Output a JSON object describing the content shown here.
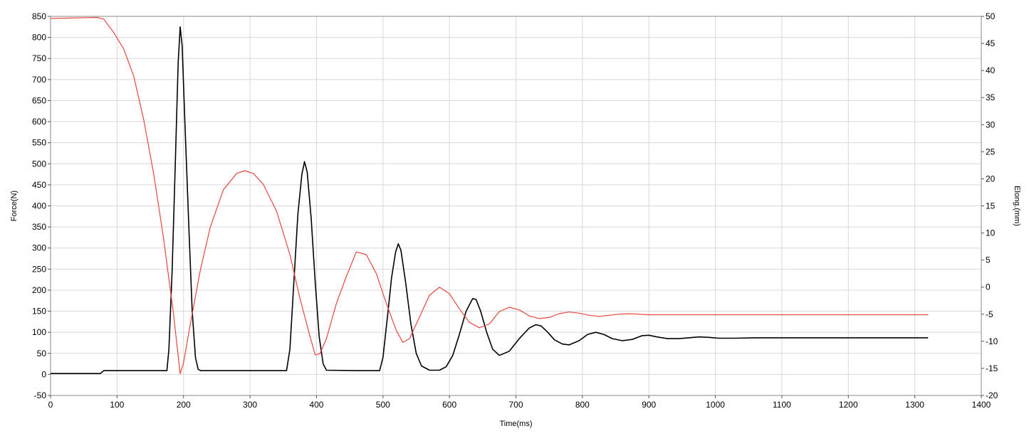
{
  "chart_data": {
    "type": "line",
    "xlabel": "Time(ms)",
    "ylabel_left": "Force(N)",
    "ylabel_right": "Elong.(mm)",
    "xlim": [
      0,
      1400
    ],
    "ylim_left": [
      -50,
      850
    ],
    "ylim_right": [
      -20,
      50
    ],
    "x_ticks": [
      "0",
      "100",
      "200",
      "300",
      "400",
      "500",
      "600",
      "700",
      "800",
      "900",
      "1000",
      "1100",
      "1200",
      "1300",
      "1400"
    ],
    "y_left_ticks": [
      "-50",
      "0",
      "50",
      "100",
      "150",
      "200",
      "250",
      "300",
      "350",
      "400",
      "450",
      "500",
      "550",
      "600",
      "650",
      "700",
      "750",
      "800",
      "850"
    ],
    "y_right_ticks": [
      "-20",
      "-15",
      "-10",
      "-5",
      "0",
      "5",
      "10",
      "15",
      "20",
      "25",
      "30",
      "35",
      "40",
      "45",
      "50"
    ],
    "grid": true,
    "colors": {
      "force": "#000000",
      "elongation": "#e8453c",
      "grid": "#d8d8d8",
      "axis": "#555555"
    },
    "series": [
      {
        "axis": "left",
        "points": [
          [
            0,
            2
          ],
          [
            75,
            2
          ],
          [
            80,
            9
          ],
          [
            120,
            9
          ],
          [
            175,
            9
          ],
          [
            178,
            60
          ],
          [
            183,
            250
          ],
          [
            188,
            520
          ],
          [
            192,
            740
          ],
          [
            195,
            825
          ],
          [
            198,
            780
          ],
          [
            202,
            600
          ],
          [
            208,
            350
          ],
          [
            213,
            150
          ],
          [
            218,
            40
          ],
          [
            222,
            12
          ],
          [
            226,
            9
          ],
          [
            280,
            9
          ],
          [
            355,
            9
          ],
          [
            360,
            60
          ],
          [
            366,
            220
          ],
          [
            372,
            380
          ],
          [
            378,
            475
          ],
          [
            382,
            505
          ],
          [
            386,
            480
          ],
          [
            392,
            370
          ],
          [
            398,
            220
          ],
          [
            404,
            90
          ],
          [
            410,
            25
          ],
          [
            415,
            10
          ],
          [
            460,
            9
          ],
          [
            495,
            9
          ],
          [
            500,
            40
          ],
          [
            507,
            140
          ],
          [
            513,
            230
          ],
          [
            519,
            290
          ],
          [
            523,
            310
          ],
          [
            527,
            295
          ],
          [
            534,
            220
          ],
          [
            542,
            120
          ],
          [
            550,
            50
          ],
          [
            558,
            20
          ],
          [
            570,
            10
          ],
          [
            585,
            10
          ],
          [
            595,
            18
          ],
          [
            605,
            45
          ],
          [
            615,
            95
          ],
          [
            625,
            150
          ],
          [
            635,
            180
          ],
          [
            640,
            178
          ],
          [
            647,
            150
          ],
          [
            656,
            100
          ],
          [
            665,
            60
          ],
          [
            675,
            45
          ],
          [
            690,
            55
          ],
          [
            705,
            85
          ],
          [
            720,
            110
          ],
          [
            730,
            118
          ],
          [
            738,
            115
          ],
          [
            748,
            100
          ],
          [
            758,
            82
          ],
          [
            770,
            72
          ],
          [
            780,
            70
          ],
          [
            795,
            80
          ],
          [
            808,
            95
          ],
          [
            820,
            100
          ],
          [
            832,
            95
          ],
          [
            845,
            85
          ],
          [
            860,
            80
          ],
          [
            875,
            83
          ],
          [
            890,
            92
          ],
          [
            900,
            93
          ],
          [
            912,
            89
          ],
          [
            928,
            85
          ],
          [
            945,
            85
          ],
          [
            960,
            87
          ],
          [
            975,
            89
          ],
          [
            990,
            88
          ],
          [
            1005,
            86
          ],
          [
            1030,
            86
          ],
          [
            1060,
            87
          ],
          [
            1100,
            87
          ],
          [
            1200,
            87
          ],
          [
            1320,
            87
          ]
        ]
      },
      {
        "axis": "right",
        "points": [
          [
            0,
            49.6
          ],
          [
            70,
            49.8
          ],
          [
            80,
            49.5
          ],
          [
            95,
            47
          ],
          [
            110,
            44
          ],
          [
            125,
            39
          ],
          [
            140,
            31
          ],
          [
            155,
            21
          ],
          [
            170,
            9
          ],
          [
            185,
            -5
          ],
          [
            195,
            -16
          ],
          [
            200,
            -14
          ],
          [
            210,
            -7
          ],
          [
            225,
            3
          ],
          [
            240,
            11
          ],
          [
            260,
            18
          ],
          [
            280,
            21
          ],
          [
            292,
            21.5
          ],
          [
            305,
            21
          ],
          [
            320,
            19
          ],
          [
            340,
            14
          ],
          [
            360,
            6
          ],
          [
            375,
            -2
          ],
          [
            390,
            -9
          ],
          [
            398,
            -12.5
          ],
          [
            405,
            -12.3
          ],
          [
            415,
            -9.5
          ],
          [
            430,
            -3
          ],
          [
            445,
            2
          ],
          [
            460,
            6.5
          ],
          [
            475,
            6
          ],
          [
            490,
            2.5
          ],
          [
            505,
            -3
          ],
          [
            520,
            -8
          ],
          [
            530,
            -10.2
          ],
          [
            540,
            -9.5
          ],
          [
            555,
            -5.5
          ],
          [
            570,
            -1.5
          ],
          [
            585,
            0
          ],
          [
            600,
            -1.2
          ],
          [
            615,
            -4
          ],
          [
            630,
            -6.5
          ],
          [
            645,
            -7.5
          ],
          [
            660,
            -6.8
          ],
          [
            675,
            -4.5
          ],
          [
            690,
            -3.7
          ],
          [
            705,
            -4.2
          ],
          [
            720,
            -5.3
          ],
          [
            735,
            -5.8
          ],
          [
            750,
            -5.6
          ],
          [
            765,
            -4.9
          ],
          [
            780,
            -4.6
          ],
          [
            795,
            -4.8
          ],
          [
            810,
            -5.2
          ],
          [
            825,
            -5.4
          ],
          [
            840,
            -5.2
          ],
          [
            855,
            -5.0
          ],
          [
            870,
            -4.9
          ],
          [
            885,
            -5.0
          ],
          [
            900,
            -5.1
          ],
          [
            940,
            -5.1
          ],
          [
            1000,
            -5.1
          ],
          [
            1100,
            -5.1
          ],
          [
            1200,
            -5.1
          ],
          [
            1320,
            -5.1
          ]
        ]
      }
    ]
  }
}
